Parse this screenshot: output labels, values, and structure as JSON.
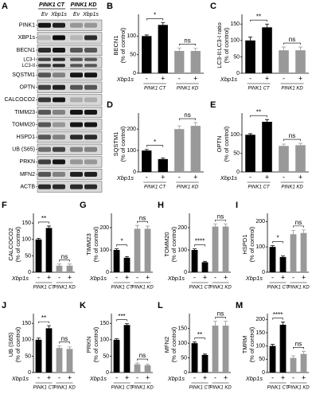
{
  "blot": {
    "letter": "A",
    "groups": [
      "PINK1 CT",
      "PINK1 KD"
    ],
    "lanes": [
      "Ev",
      "Xbp1s",
      "Ev",
      "Xbp1s"
    ],
    "rows": [
      [
        "PINK1"
      ],
      [
        "XBP1s"
      ],
      [
        "BECN1"
      ],
      [
        "LC3-I",
        "LC3-II"
      ],
      [
        "SQSTM1"
      ],
      [
        "OPTN"
      ],
      [
        "CALCOCO2"
      ],
      [
        "TIMM23"
      ],
      [
        "TOMM20"
      ],
      [
        "HSPD1"
      ],
      [
        "UB (S65)"
      ],
      [
        "PRKN"
      ],
      [
        "MFN2"
      ],
      [
        "ACTB"
      ]
    ]
  },
  "chart_data": [
    {
      "type": "bar",
      "letter": "B",
      "ylabel": [
        "BECN1",
        "(% of control)"
      ],
      "xlabel": "Xbp1s",
      "categories": [
        "-",
        "+",
        "-",
        "+"
      ],
      "groups": [
        "PINK1 CT",
        "PINK1 KD"
      ],
      "values": [
        100,
        130,
        60,
        60
      ],
      "errors": [
        3,
        6,
        8,
        7
      ],
      "colors": [
        "#000000",
        "#000000",
        "#999999",
        "#999999"
      ],
      "significance": [
        "*",
        "ns"
      ],
      "ylim": [
        0,
        150
      ],
      "yticks": [
        0,
        50,
        100
      ]
    },
    {
      "type": "bar",
      "letter": "C",
      "ylabel": [
        "LC3-II:LC3-I ratio",
        "(% of control)"
      ],
      "xlabel": "Xbp1s",
      "categories": [
        "-",
        "+",
        "-",
        "+"
      ],
      "groups": [
        "PINK1 CT",
        "PINK1 KD"
      ],
      "values": [
        100,
        140,
        70,
        70
      ],
      "errors": [
        10,
        10,
        10,
        10
      ],
      "colors": [
        "#000000",
        "#000000",
        "#999999",
        "#999999"
      ],
      "significance": [
        "**",
        "ns"
      ],
      "ylim": [
        0,
        170
      ],
      "yticks": [
        0,
        50,
        100,
        150
      ]
    },
    {
      "type": "bar",
      "letter": "D",
      "ylabel": [
        "SQSTM1",
        "(% of control)"
      ],
      "xlabel": "Xbp1s",
      "categories": [
        "-",
        "+",
        "-",
        "+"
      ],
      "groups": [
        "PINK1 CT",
        "PINK1 KD"
      ],
      "values": [
        100,
        60,
        200,
        215
      ],
      "errors": [
        5,
        5,
        15,
        15
      ],
      "colors": [
        "#000000",
        "#000000",
        "#999999",
        "#999999"
      ],
      "significance": [
        "*",
        "ns"
      ],
      "ylim": [
        0,
        260
      ],
      "yticks": [
        0,
        100,
        200
      ]
    },
    {
      "type": "bar",
      "letter": "E",
      "ylabel": [
        "OPTN",
        "(% of control)"
      ],
      "xlabel": "Xbp1s",
      "categories": [
        "-",
        "+",
        "-",
        "+"
      ],
      "groups": [
        "PINK1 CT",
        "PINK1 KD"
      ],
      "values": [
        100,
        135,
        70,
        72
      ],
      "errors": [
        3,
        6,
        5,
        5
      ],
      "colors": [
        "#000000",
        "#000000",
        "#999999",
        "#999999"
      ],
      "significance": [
        "**",
        "ns"
      ],
      "ylim": [
        0,
        150
      ],
      "yticks": [
        0,
        50,
        100
      ]
    },
    {
      "type": "bar",
      "letter": "F",
      "ylabel": [
        "CALCOCO2",
        "(% of control)"
      ],
      "xlabel": "Xbp1s",
      "categories": [
        "-",
        "+",
        "-",
        "+"
      ],
      "groups": [
        "PINK1 CT",
        "PINK1 KD"
      ],
      "values": [
        100,
        135,
        20,
        20
      ],
      "errors": [
        3,
        6,
        5,
        5
      ],
      "colors": [
        "#000000",
        "#000000",
        "#999999",
        "#999999"
      ],
      "significance": [
        "**",
        "ns"
      ],
      "ylim": [
        0,
        170
      ],
      "yticks": [
        0,
        50,
        100,
        150
      ]
    },
    {
      "type": "bar",
      "letter": "G",
      "ylabel": [
        "TIMM23",
        "(% of control)"
      ],
      "xlabel": "Xbp1s",
      "categories": [
        "-",
        "+",
        "-",
        "+"
      ],
      "groups": [
        "PINK1 CT",
        "PINK1 KD"
      ],
      "values": [
        100,
        65,
        195,
        195
      ],
      "errors": [
        5,
        5,
        15,
        12
      ],
      "colors": [
        "#000000",
        "#000000",
        "#999999",
        "#999999"
      ],
      "significance": [
        "*",
        "ns"
      ],
      "ylim": [
        0,
        250
      ],
      "yticks": [
        0,
        100,
        200
      ]
    },
    {
      "type": "bar",
      "letter": "H",
      "ylabel": [
        "TOMM20",
        "(% of control)"
      ],
      "xlabel": "Xbp1s",
      "categories": [
        "-",
        "+",
        "-",
        "+"
      ],
      "groups": [
        "PINK1 CT",
        "PINK1 KD"
      ],
      "values": [
        100,
        45,
        205,
        205
      ],
      "errors": [
        5,
        4,
        12,
        12
      ],
      "colors": [
        "#000000",
        "#000000",
        "#999999",
        "#999999"
      ],
      "significance": [
        "****",
        "ns"
      ],
      "ylim": [
        0,
        250
      ],
      "yticks": [
        0,
        100,
        200
      ]
    },
    {
      "type": "bar",
      "letter": "I",
      "ylabel": [
        "HSPD1",
        "(% of control)"
      ],
      "xlabel": "Xbp1s",
      "categories": [
        "-",
        "+",
        "-",
        "+"
      ],
      "groups": [
        "PINK1 CT",
        "PINK1 KD"
      ],
      "values": [
        100,
        60,
        150,
        155
      ],
      "errors": [
        5,
        4,
        15,
        12
      ],
      "colors": [
        "#000000",
        "#000000",
        "#999999",
        "#999999"
      ],
      "significance": [
        "*",
        "ns"
      ],
      "ylim": [
        0,
        220
      ],
      "yticks": [
        0,
        100,
        200
      ]
    },
    {
      "type": "bar",
      "letter": "J",
      "ylabel": [
        "UB (S65)",
        "(% of control)"
      ],
      "xlabel": "Xbp1s",
      "categories": [
        "-",
        "+",
        "-",
        "+"
      ],
      "groups": [
        "PINK1 CT",
        "PINK1 KD"
      ],
      "values": [
        100,
        135,
        75,
        72
      ],
      "errors": [
        5,
        8,
        6,
        6
      ],
      "colors": [
        "#000000",
        "#000000",
        "#999999",
        "#999999"
      ],
      "significance": [
        "**",
        "ns"
      ],
      "ylim": [
        0,
        170
      ],
      "yticks": [
        0,
        50,
        100,
        150
      ]
    },
    {
      "type": "bar",
      "letter": "K",
      "ylabel": [
        "PRKN",
        "(% of control)"
      ],
      "xlabel": "Xbp1s",
      "categories": [
        "-",
        "+",
        "-",
        "+"
      ],
      "groups": [
        "PINK1 CT",
        "PINK1 KD"
      ],
      "values": [
        100,
        145,
        25,
        22
      ],
      "errors": [
        3,
        4,
        4,
        3
      ],
      "colors": [
        "#000000",
        "#000000",
        "#999999",
        "#999999"
      ],
      "significance": [
        "***",
        "ns"
      ],
      "ylim": [
        0,
        170
      ],
      "yticks": [
        0,
        50,
        100,
        150
      ]
    },
    {
      "type": "bar",
      "letter": "L",
      "ylabel": [
        "MFN2",
        "(% of control)"
      ],
      "xlabel": "Xbp1s",
      "categories": [
        "-",
        "+",
        "-",
        "+"
      ],
      "groups": [
        "PINK1 CT",
        "PINK1 KD"
      ],
      "values": [
        100,
        60,
        160,
        160
      ],
      "errors": [
        4,
        3,
        15,
        15
      ],
      "colors": [
        "#000000",
        "#000000",
        "#999999",
        "#999999"
      ],
      "significance": [
        "**",
        "ns"
      ],
      "ylim": [
        0,
        190
      ],
      "yticks": [
        0,
        50,
        100,
        150
      ]
    },
    {
      "type": "bar",
      "letter": "M",
      "ylabel": [
        "TMRM",
        "(% of control)"
      ],
      "xlabel": "Xbp1s",
      "categories": [
        "-",
        "+",
        "-",
        "+"
      ],
      "groups": [
        "PINK1 CT",
        "PINK1 KD"
      ],
      "values": [
        100,
        180,
        55,
        70
      ],
      "errors": [
        6,
        10,
        8,
        10
      ],
      "colors": [
        "#000000",
        "#000000",
        "#999999",
        "#999999"
      ],
      "significance": [
        "****",
        "ns"
      ],
      "ylim": [
        0,
        210
      ],
      "yticks": [
        0,
        50,
        100,
        150,
        200
      ]
    }
  ]
}
